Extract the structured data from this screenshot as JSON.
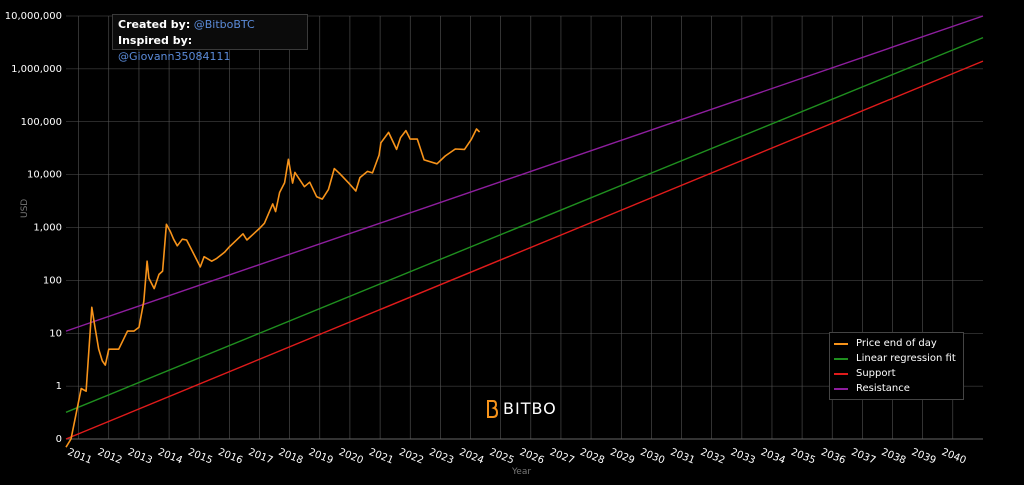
{
  "credits": {
    "created_label": "Created by:",
    "created_handle": "@BitboBTC",
    "inspired_label": "Inspired by:",
    "inspired_handle": "@Giovann35084111"
  },
  "logo": {
    "text": "BITBO",
    "icon": "bitbo-logo-icon"
  },
  "colors": {
    "background": "#000000",
    "price": "#f7931a",
    "regression": "#1f8f1f",
    "support": "#e01b1b",
    "resistance": "#8e1e9e",
    "grid": "#555555"
  },
  "chart_data": {
    "type": "line",
    "xlabel": "Year",
    "ylabel": "USD",
    "yscale": "log",
    "grid": true,
    "legend_position": "bottom-right",
    "y_ticks": [
      "0",
      "1",
      "10",
      "100",
      "1,000",
      "10,000",
      "100,000",
      "1,000,000",
      "10,000,000"
    ],
    "y_tick_values": [
      0.1,
      1,
      10,
      100,
      1000,
      10000,
      100000,
      1000000,
      10000000
    ],
    "x_ticks": [
      "2011",
      "2012",
      "2013",
      "2014",
      "2015",
      "2016",
      "2017",
      "2018",
      "2019",
      "2020",
      "2021",
      "2022",
      "2023",
      "2024",
      "2025",
      "2026",
      "2027",
      "2028",
      "2029",
      "2030",
      "2031",
      "2032",
      "2033",
      "2034",
      "2035",
      "2036",
      "2037",
      "2038",
      "2039",
      "2040"
    ],
    "series": [
      {
        "name": "Price end of day",
        "color": "#f7931a",
        "x": [
          "2010-08-01",
          "2010-10-01",
          "2010-12-01",
          "2011-02-01",
          "2011-04-01",
          "2011-05-15",
          "2011-06-10",
          "2011-07-15",
          "2011-09-01",
          "2011-10-15",
          "2011-11-20",
          "2012-01-01",
          "2012-03-01",
          "2012-05-01",
          "2012-08-15",
          "2012-11-01",
          "2013-01-01",
          "2013-03-01",
          "2013-04-10",
          "2013-05-01",
          "2013-07-05",
          "2013-09-01",
          "2013-10-15",
          "2013-11-30",
          "2014-01-15",
          "2014-02-25",
          "2014-04-10",
          "2014-06-10",
          "2014-08-01",
          "2014-10-01",
          "2015-01-14",
          "2015-03-01",
          "2015-06-01",
          "2015-08-01",
          "2015-11-04",
          "2016-01-01",
          "2016-06-15",
          "2016-08-01",
          "2016-12-31",
          "2017-03-01",
          "2017-06-10",
          "2017-07-15",
          "2017-09-01",
          "2017-11-01",
          "2017-12-17",
          "2018-02-06",
          "2018-03-05",
          "2018-06-29",
          "2018-09-01",
          "2018-11-25",
          "2019-02-01",
          "2019-04-15",
          "2019-06-26",
          "2019-09-01",
          "2019-12-15",
          "2020-03-12",
          "2020-05-01",
          "2020-08-01",
          "2020-10-01",
          "2020-12-20",
          "2021-01-10",
          "2021-04-14",
          "2021-07-20",
          "2021-09-05",
          "2021-11-10",
          "2022-01-01",
          "2022-03-28",
          "2022-06-18",
          "2022-11-21",
          "2023-03-01",
          "2023-07-01",
          "2023-10-20",
          "2024-01-10",
          "2024-03-14",
          "2024-04-20"
        ],
        "y": [
          0.07,
          0.1,
          0.3,
          0.9,
          0.8,
          8,
          31,
          14,
          5,
          3,
          2.5,
          5,
          5,
          5,
          11,
          11,
          13,
          40,
          230,
          110,
          70,
          130,
          150,
          1150,
          850,
          600,
          450,
          600,
          580,
          380,
          180,
          280,
          230,
          260,
          340,
          430,
          760,
          580,
          960,
          1200,
          2800,
          2000,
          4600,
          7000,
          19500,
          6900,
          11000,
          5900,
          7200,
          3800,
          3450,
          5200,
          13000,
          10400,
          7000,
          4900,
          8800,
          11500,
          10800,
          23500,
          40000,
          63000,
          30000,
          50000,
          68000,
          47000,
          47000,
          19000,
          16000,
          22500,
          30500,
          30000,
          46000,
          73000,
          64000
        ]
      },
      {
        "name": "Linear regression fit",
        "color": "#1f8f1f",
        "x": [
          "2010-08-01",
          "2041-01-01"
        ],
        "y": [
          0.32,
          3900000
        ]
      },
      {
        "name": "Support",
        "color": "#e01b1b",
        "x": [
          "2010-08-01",
          "2041-01-01"
        ],
        "y": [
          0.1,
          1400000
        ]
      },
      {
        "name": "Resistance",
        "color": "#8e1e9e",
        "x": [
          "2010-08-01",
          "2041-01-01"
        ],
        "y": [
          11,
          10000000
        ]
      }
    ]
  }
}
